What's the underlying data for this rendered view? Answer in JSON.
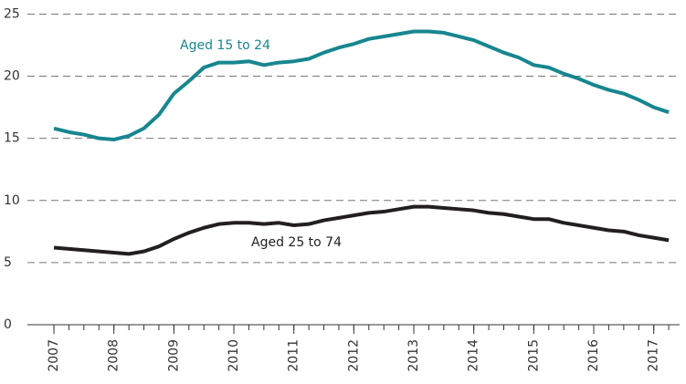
{
  "chart_data": {
    "type": "line",
    "x": [
      2007,
      2007.25,
      2007.5,
      2007.75,
      2008,
      2008.25,
      2008.5,
      2008.75,
      2009,
      2009.25,
      2009.5,
      2009.75,
      2010,
      2010.25,
      2010.5,
      2010.75,
      2011,
      2011.25,
      2011.5,
      2011.75,
      2012,
      2012.25,
      2012.5,
      2012.75,
      2013,
      2013.25,
      2013.5,
      2013.75,
      2014,
      2014.25,
      2014.5,
      2014.75,
      2015,
      2015.25,
      2015.5,
      2015.75,
      2016,
      2016.25,
      2016.5,
      2016.75,
      2017,
      2017.25
    ],
    "series": [
      {
        "name": "Aged 15 to 24",
        "color": "#17868f",
        "values": [
          15.8,
          15.5,
          15.3,
          15.0,
          14.9,
          15.2,
          15.8,
          16.9,
          18.6,
          19.6,
          20.7,
          21.1,
          21.1,
          21.2,
          20.9,
          21.1,
          21.2,
          21.4,
          21.9,
          22.3,
          22.6,
          23.0,
          23.2,
          23.4,
          23.6,
          23.6,
          23.5,
          23.2,
          22.9,
          22.4,
          21.9,
          21.5,
          20.9,
          20.7,
          20.2,
          19.8,
          19.3,
          18.9,
          18.6,
          18.1,
          17.5,
          17.1
        ]
      },
      {
        "name": "Aged 25 to 74",
        "color": "#231f20",
        "values": [
          6.2,
          6.1,
          6.0,
          5.9,
          5.8,
          5.7,
          5.9,
          6.3,
          6.9,
          7.4,
          7.8,
          8.1,
          8.2,
          8.2,
          8.1,
          8.2,
          8.0,
          8.1,
          8.4,
          8.6,
          8.8,
          9.0,
          9.1,
          9.3,
          9.5,
          9.5,
          9.4,
          9.3,
          9.2,
          9.0,
          8.9,
          8.7,
          8.5,
          8.5,
          8.2,
          8.0,
          7.8,
          7.6,
          7.5,
          7.2,
          7.0,
          6.8
        ]
      }
    ],
    "xlim": [
      2006.71,
      2017.34
    ],
    "xticks": [
      2007,
      2008,
      2009,
      2010,
      2011,
      2012,
      2013,
      2014,
      2015,
      2016,
      2017
    ],
    "ylim": [
      0,
      25.4
    ],
    "yticks": [
      0,
      5,
      10,
      15,
      20,
      25
    ],
    "grid": true
  }
}
